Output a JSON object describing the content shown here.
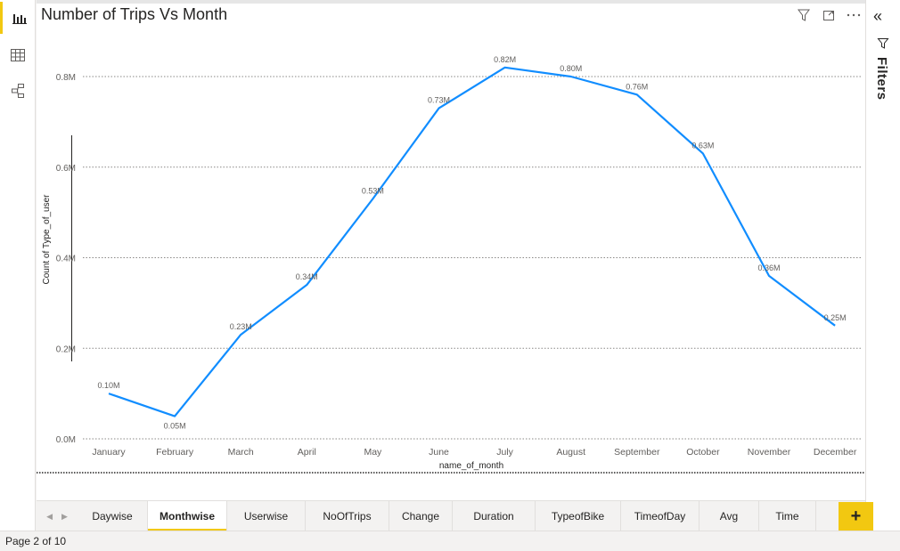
{
  "visual": {
    "title": "Number of Trips Vs Month",
    "icons": [
      "filter-icon",
      "focus-mode-icon",
      "more-options-icon"
    ]
  },
  "left_rail": {
    "items": [
      {
        "name": "report-view-icon",
        "active": true
      },
      {
        "name": "data-view-icon",
        "active": false
      },
      {
        "name": "model-view-icon",
        "active": false
      }
    ]
  },
  "filters": {
    "label": "Filters",
    "collapse_glyph": "«"
  },
  "chart_data": {
    "type": "line",
    "title": "Number of Trips Vs Month",
    "xlabel": "name_of_month",
    "ylabel": "Count of Type_of_user",
    "categories": [
      "January",
      "February",
      "March",
      "April",
      "May",
      "June",
      "July",
      "August",
      "September",
      "October",
      "November",
      "December"
    ],
    "values": [
      0.1,
      0.05,
      0.23,
      0.34,
      0.53,
      0.73,
      0.82,
      0.8,
      0.76,
      0.63,
      0.36,
      0.25
    ],
    "data_labels": [
      "0.10M",
      "0.05M",
      "0.23M",
      "0.34M",
      "0.53M",
      "0.73M",
      "0.82M",
      "0.80M",
      "0.76M",
      "0.63M",
      "0.36M",
      "0.25M"
    ],
    "ylim": [
      0,
      0.8
    ],
    "yticks": [
      0,
      0.2,
      0.4,
      0.6,
      0.8
    ],
    "ytick_labels": [
      "0.0M",
      "0.2M",
      "0.4M",
      "0.6M",
      "0.8M"
    ],
    "grid": true,
    "line_color": "#118dff"
  },
  "tabs": [
    {
      "label": "Daywise",
      "active": false
    },
    {
      "label": "Monthwise",
      "active": true
    },
    {
      "label": "Userwise",
      "active": false
    },
    {
      "label": "NoOfTrips",
      "active": false
    },
    {
      "label": "Change",
      "active": false
    },
    {
      "label": "Duration",
      "active": false
    },
    {
      "label": "TypeofBike",
      "active": false
    },
    {
      "label": "TimeofDay",
      "active": false
    },
    {
      "label": "Avg",
      "active": false
    },
    {
      "label": "Time",
      "active": false
    }
  ],
  "add_page_label": "+",
  "status": {
    "page_indicator": "Page 2 of 10"
  },
  "colors": {
    "accent": "#f2c811",
    "line": "#118dff",
    "grid": "#8a8886"
  }
}
